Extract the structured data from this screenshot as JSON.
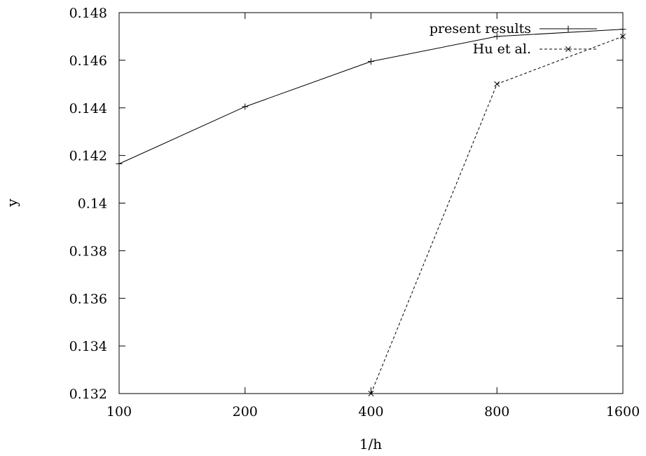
{
  "chart_data": {
    "type": "line",
    "title": "",
    "xlabel": "1/h",
    "ylabel": "y",
    "x_scale": "log2",
    "categories": [
      "100",
      "200",
      "400",
      "800",
      "1600"
    ],
    "x_ticks": [
      100,
      200,
      400,
      800,
      1600
    ],
    "y_ticks": [
      "0.132",
      "0.134",
      "0.136",
      "0.138",
      "0.14",
      "0.142",
      "0.144",
      "0.146",
      "0.148"
    ],
    "xlim": [
      100,
      1600
    ],
    "ylim": [
      0.132,
      0.148
    ],
    "grid": false,
    "legend_position": "top-right",
    "series": [
      {
        "name": "present results",
        "marker": "plus",
        "line_style": "solid",
        "x": [
          100,
          200,
          400,
          800,
          1600
        ],
        "values": [
          0.14165,
          0.14405,
          0.14595,
          0.147,
          0.1473
        ]
      },
      {
        "name": "Hu et al.",
        "marker": "cross",
        "line_style": "dashed",
        "x": [
          400,
          800,
          1600
        ],
        "values": [
          0.132,
          0.145,
          0.147
        ]
      }
    ]
  }
}
